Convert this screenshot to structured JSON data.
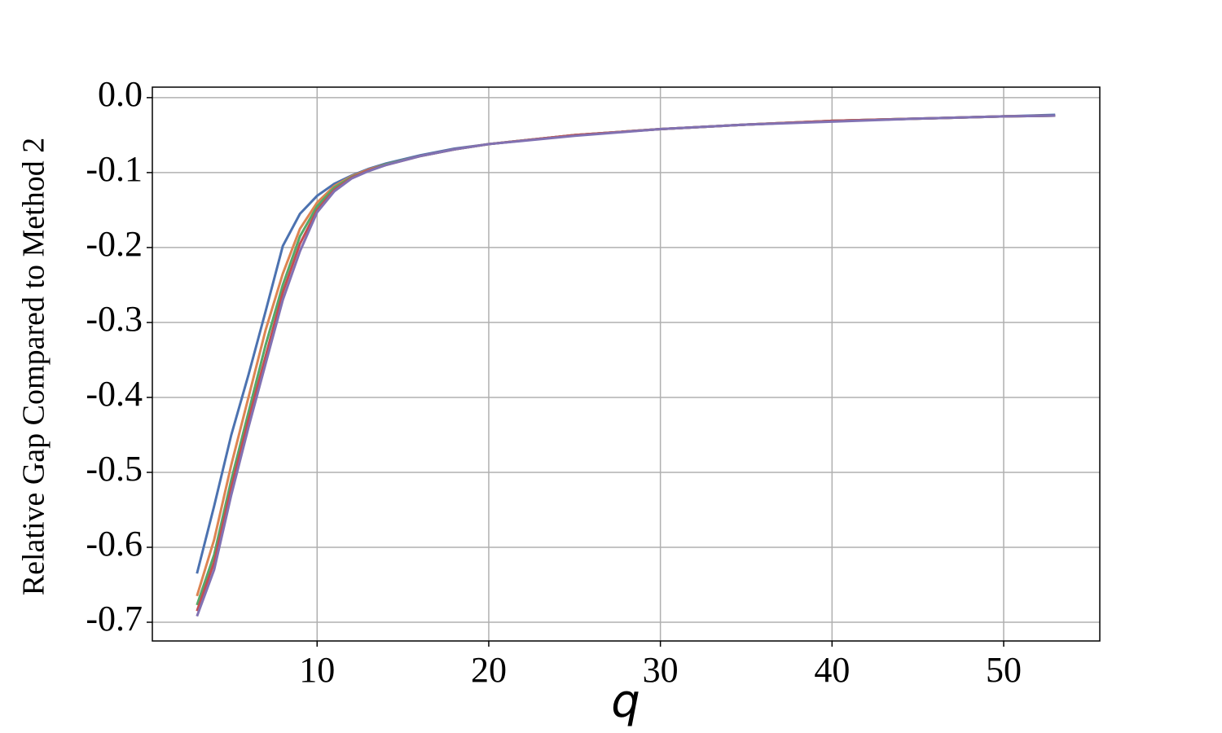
{
  "chart_data": {
    "type": "line",
    "x_label": "q",
    "y_label": "Relative Gap Compared to Method 2",
    "x": [
      3,
      4,
      5,
      6,
      7,
      8,
      9,
      10,
      11,
      12,
      13,
      14,
      16,
      18,
      20,
      25,
      30,
      35,
      40,
      45,
      50,
      53
    ],
    "series": [
      {
        "color": "#4c72b0",
        "values": [
          -0.635,
          -0.545,
          -0.45,
          -0.37,
          -0.285,
          -0.198,
          -0.155,
          -0.131,
          -0.115,
          -0.104,
          -0.095,
          -0.088,
          -0.077,
          -0.068,
          -0.062,
          -0.05,
          -0.042,
          -0.036,
          -0.031,
          -0.028,
          -0.025,
          -0.023
        ]
      },
      {
        "color": "#dd8452",
        "values": [
          -0.665,
          -0.59,
          -0.49,
          -0.4,
          -0.31,
          -0.235,
          -0.175,
          -0.14,
          -0.118,
          -0.105,
          -0.096,
          -0.089,
          -0.078,
          -0.069,
          -0.062,
          -0.05,
          -0.042,
          -0.036,
          -0.031,
          -0.028,
          -0.025,
          -0.024
        ]
      },
      {
        "color": "#55a868",
        "values": [
          -0.677,
          -0.61,
          -0.51,
          -0.42,
          -0.33,
          -0.25,
          -0.185,
          -0.145,
          -0.12,
          -0.106,
          -0.097,
          -0.089,
          -0.078,
          -0.069,
          -0.062,
          -0.05,
          -0.042,
          -0.036,
          -0.031,
          -0.028,
          -0.025,
          -0.024
        ]
      },
      {
        "color": "#c44e52",
        "values": [
          -0.685,
          -0.62,
          -0.52,
          -0.43,
          -0.345,
          -0.26,
          -0.195,
          -0.15,
          -0.123,
          -0.107,
          -0.097,
          -0.09,
          -0.078,
          -0.069,
          -0.062,
          -0.05,
          -0.042,
          -0.036,
          -0.031,
          -0.028,
          -0.025,
          -0.024
        ]
      },
      {
        "color": "#8172b3",
        "values": [
          -0.692,
          -0.63,
          -0.53,
          -0.44,
          -0.355,
          -0.27,
          -0.205,
          -0.153,
          -0.125,
          -0.108,
          -0.098,
          -0.09,
          -0.078,
          -0.069,
          -0.062,
          -0.051,
          -0.042,
          -0.036,
          -0.032,
          -0.028,
          -0.025,
          -0.024
        ]
      }
    ],
    "xlim": [
      0.4,
      55.6
    ],
    "ylim": [
      -0.725,
      0.014
    ],
    "xticks": [
      10,
      20,
      30,
      40,
      50
    ],
    "yticks": [
      {
        "value": 0,
        "label": "0.0"
      },
      -0.1,
      -0.2,
      -0.3,
      -0.4,
      -0.5,
      -0.6,
      -0.7
    ],
    "grid": true
  }
}
